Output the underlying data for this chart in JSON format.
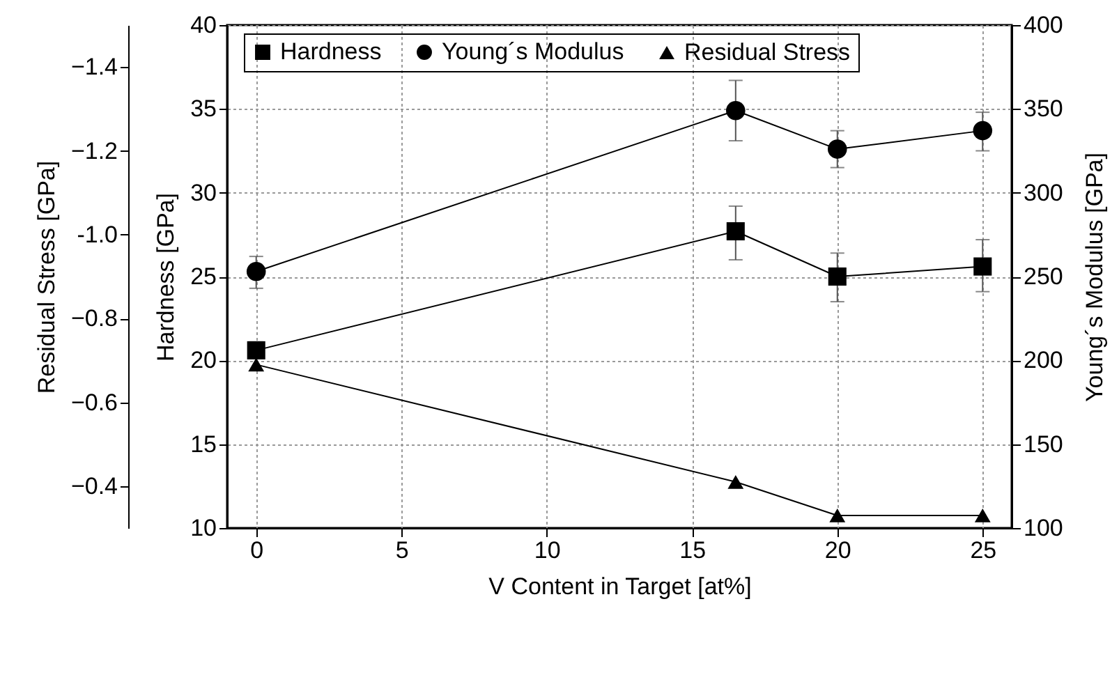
{
  "chart_data": {
    "type": "line",
    "xlabel": "V Content in Target [at%]",
    "ylabel": "Hardness [GPa]",
    "y2label": "Young´s Modulus [GPa]",
    "y3label": "Residual Stress [GPa]",
    "x": [
      0,
      16.5,
      20,
      25
    ],
    "xlim": [
      -1,
      26
    ],
    "xticks": [
      0,
      5,
      10,
      15,
      20,
      25
    ],
    "ylim": [
      10,
      40
    ],
    "yticks": [
      10,
      15,
      20,
      25,
      30,
      35,
      40
    ],
    "y2lim": [
      100,
      400
    ],
    "y2ticks": [
      100,
      150,
      200,
      250,
      300,
      350,
      400
    ],
    "y3lim": [
      -0.3,
      -1.5
    ],
    "y3ticks": [
      -1.4,
      -1.2,
      {
        "value": -1,
        "label": "-1.0"
      },
      -0.8,
      -0.6,
      -0.4
    ],
    "grid": true,
    "legend": "top",
    "line_style": "solid",
    "series": [
      {
        "name": "Hardness",
        "color": "#000000",
        "marker": "square",
        "axis": "y",
        "values": [
          20.6,
          27.7,
          25.0,
          25.6
        ],
        "errors": [
          [
            20.2,
            21.1
          ],
          [
            26.0,
            29.2
          ],
          [
            23.5,
            26.4
          ],
          [
            24.1,
            27.2
          ]
        ]
      },
      {
        "name": "Young´s Modulus",
        "color": "#000000",
        "marker": "circle",
        "axis": "y2",
        "values": [
          253,
          349,
          326,
          337
        ],
        "errors": [
          [
            243,
            262
          ],
          [
            331,
            367
          ],
          [
            315,
            337
          ],
          [
            325,
            348
          ]
        ]
      },
      {
        "name": "Residual Stress",
        "color": "#000000",
        "marker": "triangle",
        "axis": "y3",
        "values": [
          -0.69,
          -0.41,
          -0.33,
          -0.33
        ]
      }
    ]
  }
}
